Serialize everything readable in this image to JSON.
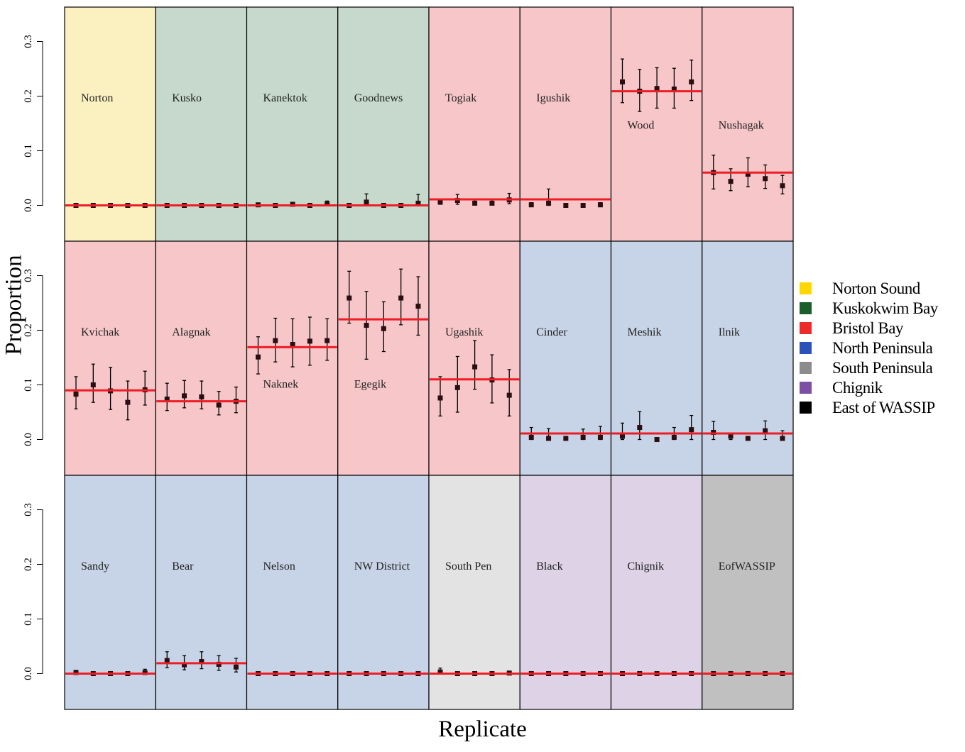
{
  "chart_data": {
    "type": "scatter",
    "description_axes": {
      "xlabel": "Replicate",
      "ylabel": "Proportion",
      "yticks": [
        "0.0",
        "0.1",
        "0.2",
        "0.3"
      ],
      "ylim": [
        -0.06,
        0.36
      ]
    },
    "legend": [
      {
        "name": "Norton Sound",
        "color": "#FFD700"
      },
      {
        "name": "Kuskokwim Bay",
        "color": "#1A5E2C"
      },
      {
        "name": "Bristol Bay",
        "color": "#EE2A2A"
      },
      {
        "name": "North Peninsula",
        "color": "#2A52B8"
      },
      {
        "name": "South Peninsula",
        "color": "#8C8C8C"
      },
      {
        "name": "Chignik",
        "color": "#7B4FA3"
      },
      {
        "name": "East of WASSIP",
        "color": "#000000"
      }
    ],
    "panels": [
      {
        "name": "Norton",
        "region": "Norton Sound",
        "bg": "#FBF0C0",
        "true": 0.0,
        "label_y": 0.19,
        "points": [
          [
            0.0,
            0.0,
            0.0
          ],
          [
            0.0,
            0.0,
            0.0
          ],
          [
            0.0,
            0.0,
            0.0
          ],
          [
            0.0,
            0.0,
            0.0
          ],
          [
            0.0,
            0.0,
            0.0
          ]
        ]
      },
      {
        "name": "Kusko",
        "region": "Kuskokwim Bay",
        "bg": "#C6D9CC",
        "true": 0.0,
        "label_y": 0.19,
        "points": [
          [
            0.0,
            0.0,
            0.0
          ],
          [
            0.0,
            0.0,
            0.0
          ],
          [
            0.0,
            0.0,
            0.0
          ],
          [
            0.0,
            0.0,
            0.0
          ],
          [
            0.0,
            0.0,
            0.0
          ]
        ]
      },
      {
        "name": "Kanektok",
        "region": "Kuskokwim Bay",
        "bg": "#C6D9CC",
        "true": 0.0,
        "label_y": 0.19,
        "points": [
          [
            0.001,
            0.0,
            0.004
          ],
          [
            0.0,
            0.0,
            0.002
          ],
          [
            0.002,
            0.0,
            0.005
          ],
          [
            0.0,
            0.0,
            0.002
          ],
          [
            0.003,
            0.0,
            0.008
          ]
        ]
      },
      {
        "name": "Goodnews",
        "region": "Kuskokwim Bay",
        "bg": "#C6D9CC",
        "true": 0.0,
        "label_y": 0.19,
        "points": [
          [
            0.0,
            0.0,
            0.002
          ],
          [
            0.006,
            0.0,
            0.021
          ],
          [
            0.0,
            0.0,
            0.002
          ],
          [
            0.0,
            0.0,
            0.002
          ],
          [
            0.004,
            0.0,
            0.02
          ]
        ]
      },
      {
        "name": "Togiak",
        "region": "Bristol Bay",
        "bg": "#F6C6C8",
        "true": 0.011,
        "label_y": 0.19,
        "points": [
          [
            0.006,
            0.002,
            0.012
          ],
          [
            0.009,
            0.002,
            0.02
          ],
          [
            0.004,
            0.001,
            0.01
          ],
          [
            0.004,
            0.001,
            0.01
          ],
          [
            0.01,
            0.003,
            0.022
          ]
        ]
      },
      {
        "name": "Igushik",
        "region": "Bristol Bay",
        "bg": "#F6C6C8",
        "true": 0.011,
        "label_y": 0.19,
        "points": [
          [
            0.001,
            0.0,
            0.005
          ],
          [
            0.004,
            0.0,
            0.03
          ],
          [
            0.0,
            0.0,
            0.002
          ],
          [
            0.0,
            0.0,
            0.002
          ],
          [
            0.001,
            0.0,
            0.005
          ]
        ]
      },
      {
        "name": "Wood",
        "region": "Bristol Bay",
        "bg": "#F6C6C8",
        "true": 0.209,
        "label_y": 0.14,
        "points": [
          [
            0.226,
            0.188,
            0.268
          ],
          [
            0.209,
            0.172,
            0.249
          ],
          [
            0.214,
            0.178,
            0.252
          ],
          [
            0.213,
            0.178,
            0.251
          ],
          [
            0.226,
            0.192,
            0.266
          ]
        ]
      },
      {
        "name": "Nushagak",
        "region": "Bristol Bay",
        "bg": "#F6C6C8",
        "true": 0.06,
        "label_y": 0.14,
        "points": [
          [
            0.06,
            0.03,
            0.092
          ],
          [
            0.044,
            0.027,
            0.067
          ],
          [
            0.057,
            0.034,
            0.087
          ],
          [
            0.049,
            0.031,
            0.074
          ],
          [
            0.036,
            0.021,
            0.055
          ]
        ]
      },
      {
        "name": "Kvichak",
        "region": "Bristol Bay",
        "bg": "#F6C6C8",
        "true": 0.09,
        "label_y": 0.19,
        "points": [
          [
            0.083,
            0.056,
            0.115
          ],
          [
            0.1,
            0.068,
            0.138
          ],
          [
            0.089,
            0.055,
            0.132
          ],
          [
            0.068,
            0.036,
            0.107
          ],
          [
            0.091,
            0.063,
            0.125
          ]
        ]
      },
      {
        "name": "Alagnak",
        "region": "Bristol Bay",
        "bg": "#F6C6C8",
        "true": 0.07,
        "label_y": 0.19,
        "points": [
          [
            0.074,
            0.053,
            0.103
          ],
          [
            0.08,
            0.058,
            0.108
          ],
          [
            0.078,
            0.056,
            0.107
          ],
          [
            0.063,
            0.045,
            0.088
          ],
          [
            0.07,
            0.049,
            0.096
          ]
        ]
      },
      {
        "name": "Naknek",
        "region": "Bristol Bay",
        "bg": "#F6C6C8",
        "true": 0.169,
        "label_y": 0.095,
        "points": [
          [
            0.151,
            0.12,
            0.188
          ],
          [
            0.181,
            0.142,
            0.222
          ],
          [
            0.174,
            0.133,
            0.221
          ],
          [
            0.18,
            0.136,
            0.224
          ],
          [
            0.181,
            0.145,
            0.221
          ]
        ]
      },
      {
        "name": "Egegik",
        "region": "Bristol Bay",
        "bg": "#F6C6C8",
        "true": 0.22,
        "label_y": 0.095,
        "points": [
          [
            0.259,
            0.213,
            0.308
          ],
          [
            0.209,
            0.147,
            0.271
          ],
          [
            0.203,
            0.161,
            0.252
          ],
          [
            0.259,
            0.21,
            0.312
          ],
          [
            0.244,
            0.191,
            0.298
          ]
        ]
      },
      {
        "name": "Ugashik",
        "region": "Bristol Bay",
        "bg": "#F6C6C8",
        "true": 0.11,
        "label_y": 0.19,
        "points": [
          [
            0.076,
            0.043,
            0.115
          ],
          [
            0.095,
            0.05,
            0.152
          ],
          [
            0.133,
            0.092,
            0.181
          ],
          [
            0.109,
            0.067,
            0.155
          ],
          [
            0.081,
            0.043,
            0.128
          ]
        ]
      },
      {
        "name": "Cinder",
        "region": "North Peninsula",
        "bg": "#C7D3E6",
        "true": 0.011,
        "label_y": 0.19,
        "points": [
          [
            0.004,
            0.0,
            0.022
          ],
          [
            0.002,
            0.0,
            0.02
          ],
          [
            0.002,
            0.0,
            0.005
          ],
          [
            0.004,
            0.0,
            0.019
          ],
          [
            0.004,
            0.0,
            0.024
          ]
        ]
      },
      {
        "name": "Meshik",
        "region": "North Peninsula",
        "bg": "#C7D3E6",
        "true": 0.011,
        "label_y": 0.19,
        "points": [
          [
            0.006,
            0.0,
            0.03
          ],
          [
            0.022,
            0.0,
            0.051
          ],
          [
            0.0,
            0.0,
            0.002
          ],
          [
            0.004,
            0.0,
            0.022
          ],
          [
            0.018,
            0.0,
            0.044
          ]
        ]
      },
      {
        "name": "Ilnik",
        "region": "North Peninsula",
        "bg": "#C7D3E6",
        "true": 0.011,
        "label_y": 0.19,
        "points": [
          [
            0.013,
            0.0,
            0.033
          ],
          [
            0.006,
            0.0,
            0.01
          ],
          [
            0.002,
            0.0,
            0.004
          ],
          [
            0.016,
            0.0,
            0.034
          ],
          [
            0.002,
            0.0,
            0.016
          ]
        ]
      },
      {
        "name": "Sandy",
        "region": "North Peninsula",
        "bg": "#C7D3E6",
        "true": 0.0,
        "label_y": 0.19,
        "points": [
          [
            0.002,
            0.0,
            0.006
          ],
          [
            0.0,
            0.0,
            0.002
          ],
          [
            0.0,
            0.0,
            0.002
          ],
          [
            0.0,
            0.0,
            0.002
          ],
          [
            0.002,
            0.0,
            0.008
          ]
        ]
      },
      {
        "name": "Bear",
        "region": "North Peninsula",
        "bg": "#C7D3E6",
        "true": 0.019,
        "label_y": 0.19,
        "points": [
          [
            0.024,
            0.011,
            0.04
          ],
          [
            0.016,
            0.007,
            0.033
          ],
          [
            0.022,
            0.009,
            0.04
          ],
          [
            0.017,
            0.006,
            0.033
          ],
          [
            0.012,
            0.003,
            0.028
          ]
        ]
      },
      {
        "name": "Nelson",
        "region": "North Peninsula",
        "bg": "#C7D3E6",
        "true": 0.0,
        "label_y": 0.19,
        "points": [
          [
            0.0,
            0.0,
            0.0
          ],
          [
            0.0,
            0.0,
            0.0
          ],
          [
            0.0,
            0.0,
            0.0
          ],
          [
            0.0,
            0.0,
            0.0
          ],
          [
            0.0,
            0.0,
            0.0
          ]
        ]
      },
      {
        "name": "NW District",
        "region": "North Peninsula",
        "bg": "#C7D3E6",
        "true": 0.0,
        "label_y": 0.19,
        "points": [
          [
            0.0,
            0.0,
            0.0
          ],
          [
            0.0,
            0.0,
            0.0
          ],
          [
            0.0,
            0.0,
            0.0
          ],
          [
            0.0,
            0.0,
            0.0
          ],
          [
            0.0,
            0.0,
            0.0
          ]
        ]
      },
      {
        "name": "South Pen",
        "region": "South Peninsula",
        "bg": "#E3E3E3",
        "true": 0.0,
        "label_y": 0.19,
        "points": [
          [
            0.003,
            0.0,
            0.01
          ],
          [
            0.0,
            0.0,
            0.001
          ],
          [
            0.0,
            0.0,
            0.001
          ],
          [
            0.0,
            0.0,
            0.001
          ],
          [
            0.001,
            0.0,
            0.004
          ]
        ]
      },
      {
        "name": "Black",
        "region": "Chignik",
        "bg": "#DDD2E6",
        "true": 0.0,
        "label_y": 0.19,
        "points": [
          [
            0.0,
            0.0,
            0.0
          ],
          [
            0.0,
            0.0,
            0.0
          ],
          [
            0.0,
            0.0,
            0.0
          ],
          [
            0.0,
            0.0,
            0.0
          ],
          [
            0.0,
            0.0,
            0.0
          ]
        ]
      },
      {
        "name": "Chignik",
        "region": "Chignik",
        "bg": "#DDD2E6",
        "true": 0.0,
        "label_y": 0.19,
        "points": [
          [
            0.0,
            0.0,
            0.0
          ],
          [
            0.0,
            0.0,
            0.0
          ],
          [
            0.0,
            0.0,
            0.0
          ],
          [
            0.0,
            0.0,
            0.0
          ],
          [
            0.0,
            0.0,
            0.0
          ]
        ]
      },
      {
        "name": "EofWASSIP",
        "region": "East of WASSIP",
        "bg": "#C0C0C0",
        "true": 0.0,
        "label_y": 0.19,
        "points": [
          [
            0.0,
            0.0,
            0.0
          ],
          [
            0.0,
            0.0,
            0.0
          ],
          [
            0.0,
            0.0,
            0.0
          ],
          [
            0.0,
            0.0,
            0.0
          ],
          [
            0.0,
            0.0,
            0.0
          ]
        ]
      }
    ]
  }
}
